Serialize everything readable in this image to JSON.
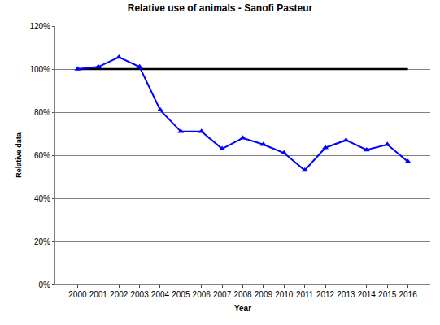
{
  "chart_data": {
    "type": "line",
    "title": "Relative use of animals - Sanofi Pasteur",
    "x_label": "Year",
    "y_label": "Relative data",
    "categories": [
      "2000",
      "2001",
      "2002",
      "2003",
      "2004",
      "2005",
      "2006",
      "2007",
      "2008",
      "2009",
      "2010",
      "2011",
      "2012",
      "2013",
      "2014",
      "2015",
      "2016"
    ],
    "series": [
      {
        "color": "#000000",
        "marker": "none",
        "line_style": "solid",
        "values": [
          100,
          100,
          100,
          100,
          100,
          100,
          100,
          100,
          100,
          100,
          100,
          100,
          100,
          100,
          100,
          100,
          100
        ]
      },
      {
        "color": "#0000ff",
        "marker": "triangle",
        "line_style": "solid",
        "values": [
          100,
          101,
          105.5,
          101,
          81,
          71,
          71,
          63,
          68,
          65,
          61,
          53,
          63.5,
          67,
          62.5,
          65,
          57
        ]
      }
    ],
    "ylim": [
      0,
      120
    ],
    "yticks": [
      {
        "value": 0,
        "label": "0%"
      },
      {
        "value": 20,
        "label": "20%"
      },
      {
        "value": 40,
        "label": "40%"
      },
      {
        "value": 60,
        "label": "60%"
      },
      {
        "value": 80,
        "label": "80%"
      },
      {
        "value": 100,
        "label": "100%"
      },
      {
        "value": 120,
        "label": "120%"
      }
    ],
    "grid": true
  }
}
